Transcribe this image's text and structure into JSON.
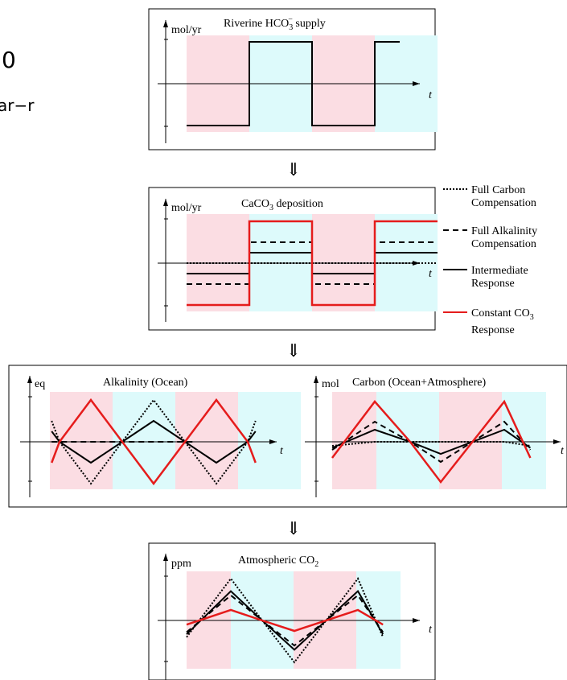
{
  "edge_fragments": {
    "top": "0",
    "bottom": "ar−r"
  },
  "colors": {
    "pink": "#fbdde3",
    "cyan": "#ddfafb",
    "red": "#e51c1c",
    "black": "#000000"
  },
  "flow_arrow_glyph": "⇓",
  "legend": {
    "items": [
      {
        "style": "dotted",
        "lines": [
          "Full Carbon",
          "Compensation"
        ]
      },
      {
        "style": "dashed",
        "lines": [
          "Full Alkalinity",
          "Compensation"
        ]
      },
      {
        "style": "solid",
        "lines": [
          "Intermediate",
          "Response"
        ]
      },
      {
        "style": "red",
        "lines": [
          "Constant CO",
          "Response"
        ],
        "subscript": "3"
      }
    ]
  },
  "panels": {
    "riverine": {
      "unit": "mol/yr",
      "title": "Riverine HCO",
      "title_sub": "3",
      "title_sup": "−",
      "title_tail": " supply",
      "axis_label": "t"
    },
    "caco3": {
      "unit": "mol/yr",
      "title": "CaCO",
      "title_sub": "3",
      "title_tail": " deposition",
      "axis_label": "t"
    },
    "alkalinity": {
      "unit": "eq",
      "title": "Alkalinity (Ocean)",
      "axis_label": "t"
    },
    "carbon": {
      "unit": "mol",
      "title": "Carbon (Ocean+Atmosphere)",
      "axis_label": "t"
    },
    "atmos": {
      "unit": "ppm",
      "title": "Atmospheric CO",
      "title_sub": "2",
      "axis_label": "t"
    }
  },
  "chart_data": [
    {
      "type": "line",
      "name": "riverine",
      "phases": [
        "pink",
        "cyan",
        "pink",
        "cyan"
      ],
      "series": [
        {
          "style": "solid",
          "y": [
            -1,
            1,
            -1,
            1
          ]
        }
      ]
    },
    {
      "type": "line",
      "name": "caco3",
      "phases": [
        "pink",
        "cyan",
        "pink",
        "cyan"
      ],
      "series": [
        {
          "style": "dotted",
          "y": [
            0,
            0,
            0,
            0
          ]
        },
        {
          "style": "dashed",
          "y": [
            -0.5,
            0.5,
            -0.5,
            0.5
          ]
        },
        {
          "style": "solid",
          "y": [
            -0.25,
            0.25,
            -0.25,
            0.25
          ]
        },
        {
          "style": "red",
          "y": [
            -1,
            1,
            -1,
            1
          ]
        }
      ]
    },
    {
      "type": "line",
      "name": "alkalinity",
      "t": [
        -0.25,
        0,
        1,
        2,
        3,
        4,
        4.25
      ],
      "series": [
        {
          "style": "dashed",
          "y": [
            0,
            0,
            0,
            0,
            0,
            0,
            0
          ]
        },
        {
          "style": "dotted",
          "y": [
            0.5,
            0,
            -1,
            0,
            1,
            0,
            -1,
            0,
            0.5
          ],
          "t": [
            -0.25,
            0,
            1,
            2,
            3,
            4,
            5,
            6,
            6.25
          ]
        },
        {
          "style": "solid",
          "y": [
            0.25,
            0,
            -0.5,
            0,
            0.5,
            0,
            -0.5,
            0,
            0.25
          ],
          "t": [
            -0.25,
            0,
            1,
            2,
            3,
            4,
            5,
            6,
            6.25
          ]
        },
        {
          "style": "red",
          "y": [
            -0.5,
            0,
            1,
            0,
            -1,
            0,
            1,
            0,
            -0.5
          ],
          "t": [
            -0.25,
            0,
            1,
            2,
            3,
            4,
            5,
            6,
            6.25
          ]
        }
      ]
    },
    {
      "type": "line",
      "name": "carbon",
      "t": [
        0,
        1,
        2,
        3,
        4,
        4.6
      ],
      "series": [
        {
          "style": "dotted",
          "y": [
            -0.1,
            0,
            0,
            0,
            0,
            -0.1
          ]
        },
        {
          "style": "dashed",
          "y": [
            -0.2,
            0.5,
            0,
            -0.5,
            0.5,
            -0.2
          ]
        },
        {
          "style": "solid",
          "y": [
            -0.15,
            0.3,
            0,
            -0.3,
            0.3,
            -0.15
          ]
        },
        {
          "style": "red",
          "y": [
            -0.4,
            1,
            0,
            -1,
            1,
            -0.4
          ]
        }
      ]
    },
    {
      "type": "line",
      "name": "atmos",
      "t": [
        0,
        1,
        2,
        3,
        4,
        4.6
      ],
      "series": [
        {
          "style": "dotted",
          "y": [
            -0.4,
            1,
            0,
            -1,
            1,
            -0.4
          ]
        },
        {
          "style": "dashed",
          "y": [
            -0.28,
            0.6,
            0,
            -0.6,
            0.6,
            -0.28
          ]
        },
        {
          "style": "solid",
          "y": [
            -0.33,
            0.7,
            0,
            -0.7,
            0.7,
            -0.33
          ]
        },
        {
          "style": "red",
          "y": [
            -0.1,
            0.25,
            0,
            -0.25,
            0.25,
            -0.1
          ]
        }
      ]
    }
  ]
}
